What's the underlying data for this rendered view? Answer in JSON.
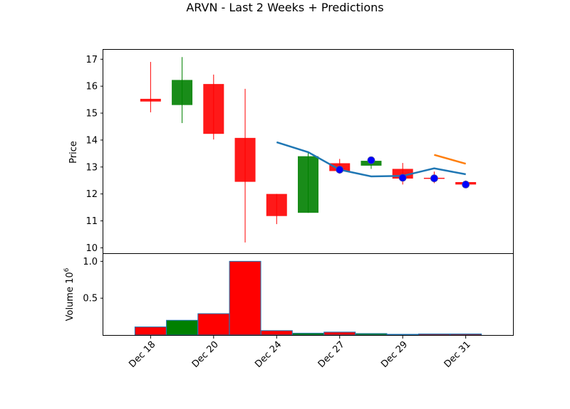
{
  "chart_data": {
    "type": "candlestick",
    "title": "ARVN - Last 2 Weeks + Predictions",
    "price_ylabel": "Price",
    "volume_ylabel": "Volume",
    "volume_multiplier_label": "10",
    "volume_multiplier_exp": "6",
    "x_tick_labels": [
      "Dec 18",
      "Dec 20",
      "Dec 24",
      "Dec 27",
      "Dec 29",
      "Dec 31"
    ],
    "x_tick_positions": [
      0,
      2,
      4,
      6,
      8,
      10
    ],
    "price_ylim": [
      9.8,
      17.35
    ],
    "price_yticks": [
      "10",
      "11",
      "12",
      "13",
      "14",
      "15",
      "16",
      "17"
    ],
    "volume_ylim": [
      0,
      1.1
    ],
    "volume_yticks": [
      "0.5",
      "1.0"
    ],
    "grid": false,
    "candles": [
      {
        "open": 15.53,
        "high": 16.9,
        "low": 15.03,
        "close": 15.43,
        "volume": 0.11
      },
      {
        "open": 15.3,
        "high": 17.08,
        "low": 14.63,
        "close": 16.23,
        "volume": 0.2
      },
      {
        "open": 16.08,
        "high": 16.43,
        "low": 14.02,
        "close": 14.23,
        "volume": 0.29
      },
      {
        "open": 14.08,
        "high": 15.9,
        "low": 10.2,
        "close": 12.45,
        "volume": 1.0
      },
      {
        "open": 12.0,
        "high": 12.0,
        "low": 10.88,
        "close": 11.18,
        "volume": 0.06
      },
      {
        "open": 11.3,
        "high": 13.58,
        "low": 11.3,
        "close": 13.4,
        "volume": 0.025
      },
      {
        "open": 13.14,
        "high": 13.3,
        "low": 12.75,
        "close": 12.85,
        "volume": 0.04
      },
      {
        "open": 13.05,
        "high": 13.25,
        "low": 12.93,
        "close": 13.23,
        "volume": 0.02
      },
      {
        "open": 12.93,
        "high": 13.15,
        "low": 12.35,
        "close": 12.57,
        "volume": 0.01
      },
      {
        "open": 12.6,
        "high": 12.83,
        "low": 12.4,
        "close": 12.58,
        "volume": 0.015
      },
      {
        "open": 12.44,
        "high": 12.5,
        "low": 12.28,
        "close": 12.35,
        "volume": 0.015
      }
    ],
    "predicted_points": [
      {
        "x": 6,
        "y": 12.9
      },
      {
        "x": 7,
        "y": 13.25
      },
      {
        "x": 8,
        "y": 12.6
      },
      {
        "x": 9,
        "y": 12.58
      },
      {
        "x": 10,
        "y": 12.35
      }
    ],
    "series": [
      {
        "color": "#1f77b4",
        "x": [
          4,
          5,
          6,
          7,
          8,
          9,
          10
        ],
        "y": [
          13.92,
          13.55,
          12.9,
          12.65,
          12.67,
          12.95,
          12.73
        ]
      },
      {
        "color": "#ff7f0e",
        "x": [
          9,
          10
        ],
        "y": [
          13.45,
          13.12
        ]
      }
    ],
    "colors": {
      "up": "#008000",
      "down": "#ff0000",
      "volume_edge": "#1f77b4",
      "marker": "#0000ff"
    }
  }
}
